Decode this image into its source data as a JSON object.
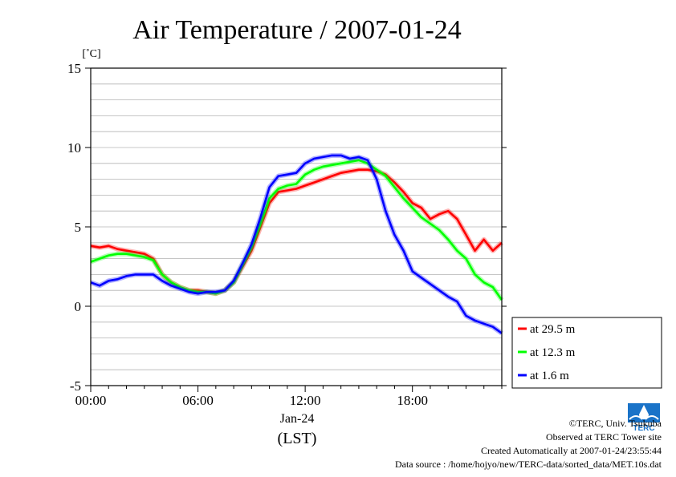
{
  "chart_data": {
    "type": "line",
    "title": "Air Temperature / 2007-01-24",
    "ylabel": "[˚C]",
    "ylim": [
      -5,
      15
    ],
    "yticks": [
      15,
      10,
      5,
      0,
      -5
    ],
    "xlim": [
      0,
      23
    ],
    "xticks": [
      {
        "hour": 0,
        "label": "00:00"
      },
      {
        "hour": 6,
        "label": "06:00"
      },
      {
        "hour": 12,
        "label": "12:00"
      },
      {
        "hour": 18,
        "label": "18:00"
      }
    ],
    "date_label": "Jan-24",
    "xlabel": "(LST)",
    "grid": true,
    "legend_position": "right, outside plot",
    "series": [
      {
        "name": "at 29.5 m",
        "color": "#ff0000",
        "x": [
          0,
          0.5,
          1,
          1.5,
          2,
          2.5,
          3,
          3.5,
          4,
          4.5,
          5,
          5.5,
          6,
          6.5,
          7,
          7.5,
          8,
          8.5,
          9,
          9.5,
          10,
          10.5,
          11,
          11.5,
          12,
          12.5,
          13,
          13.5,
          14,
          14.5,
          15,
          15.5,
          16,
          16.5,
          17,
          17.5,
          18,
          18.5,
          19,
          19.5,
          20,
          20.5,
          21,
          21.5,
          22,
          22.5,
          23
        ],
        "y": [
          3.8,
          3.7,
          3.8,
          3.6,
          3.5,
          3.4,
          3.3,
          3.0,
          2.0,
          1.5,
          1.2,
          1.0,
          1.0,
          0.9,
          0.8,
          1.0,
          1.5,
          2.5,
          3.5,
          5.0,
          6.5,
          7.2,
          7.3,
          7.4,
          7.6,
          7.8,
          8.0,
          8.2,
          8.4,
          8.5,
          8.6,
          8.6,
          8.5,
          8.3,
          7.8,
          7.2,
          6.5,
          6.2,
          5.5,
          5.8,
          6.0,
          5.5,
          4.5,
          3.5,
          4.2,
          3.5,
          4.0
        ]
      },
      {
        "name": "at 12.3 m",
        "color": "#00ff00",
        "x": [
          0,
          0.5,
          1,
          1.5,
          2,
          2.5,
          3,
          3.5,
          4,
          4.5,
          5,
          5.5,
          6,
          6.5,
          7,
          7.5,
          8,
          8.5,
          9,
          9.5,
          10,
          10.5,
          11,
          11.5,
          12,
          12.5,
          13,
          13.5,
          14,
          14.5,
          15,
          15.5,
          16,
          16.5,
          17,
          17.5,
          18,
          18.5,
          19,
          19.5,
          20,
          20.5,
          21,
          21.5,
          22,
          22.5,
          23
        ],
        "y": [
          2.8,
          3.0,
          3.2,
          3.3,
          3.3,
          3.2,
          3.1,
          2.9,
          2.0,
          1.5,
          1.2,
          1.0,
          0.9,
          0.9,
          0.8,
          1.0,
          1.5,
          2.6,
          3.7,
          5.2,
          6.8,
          7.4,
          7.6,
          7.7,
          8.3,
          8.6,
          8.8,
          8.9,
          9.0,
          9.1,
          9.2,
          9.0,
          8.6,
          8.2,
          7.5,
          6.8,
          6.2,
          5.6,
          5.2,
          4.8,
          4.2,
          3.5,
          3.0,
          2.0,
          1.5,
          1.2,
          0.4
        ]
      },
      {
        "name": "at 1.6 m",
        "color": "#0000ff",
        "x": [
          0,
          0.5,
          1,
          1.5,
          2,
          2.5,
          3,
          3.5,
          4,
          4.5,
          5,
          5.5,
          6,
          6.5,
          7,
          7.5,
          8,
          8.5,
          9,
          9.5,
          10,
          10.5,
          11,
          11.5,
          12,
          12.5,
          13,
          13.5,
          14,
          14.5,
          15,
          15.5,
          16,
          16.5,
          17,
          17.5,
          18,
          18.5,
          19,
          19.5,
          20,
          20.5,
          21,
          21.5,
          22,
          22.5,
          23
        ],
        "y": [
          1.5,
          1.3,
          1.6,
          1.7,
          1.9,
          2.0,
          2.0,
          2.0,
          1.6,
          1.3,
          1.1,
          0.9,
          0.8,
          0.9,
          0.9,
          1.0,
          1.6,
          2.7,
          3.9,
          5.6,
          7.5,
          8.2,
          8.3,
          8.4,
          9.0,
          9.3,
          9.4,
          9.5,
          9.5,
          9.3,
          9.4,
          9.2,
          8.0,
          6.0,
          4.5,
          3.5,
          2.2,
          1.8,
          1.4,
          1.0,
          0.6,
          0.3,
          -0.6,
          -0.9,
          -1.1,
          -1.3,
          -1.7
        ]
      }
    ]
  },
  "credits": {
    "line1": "©TERC, Univ. Tsukuba",
    "line2": "Observed at TERC Tower site",
    "line3": "Created Automatically at 2007-01-24/23:55:44",
    "line4": "Data source : /home/hojyo/new/TERC-data/sorted_data/MET.10s.dat"
  },
  "logo": {
    "text": "TERC",
    "color": "#1a73c8",
    "icon": "terc-logo-icon"
  }
}
